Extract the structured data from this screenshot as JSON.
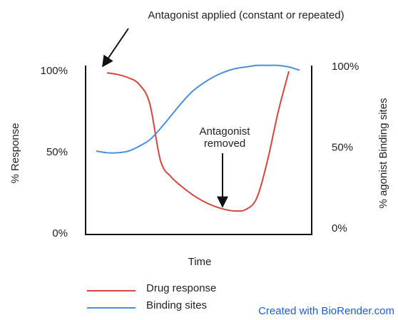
{
  "chart_data": {
    "type": "line",
    "annotations": [
      "Antagonist applied (constant or repeated)",
      "Antagonist",
      "removed"
    ],
    "xlabel": "Time",
    "ylabel": "% Response",
    "y2label": "% agonist Binding sites",
    "categories": [
      null,
      null,
      null,
      null,
      null,
      null,
      null,
      null,
      null,
      null,
      null,
      null,
      null,
      null,
      null,
      null,
      null,
      null,
      null,
      null
    ],
    "ylim": [
      0,
      100
    ],
    "yticks": [
      {
        "value": 0,
        "label": "0%"
      },
      {
        "value": 50,
        "label": "50%"
      },
      {
        "value": 100,
        "label": "100%"
      }
    ],
    "y2lim": [
      0,
      100
    ],
    "y2ticks": [
      {
        "value": 0,
        "label": "0%"
      },
      {
        "value": 50,
        "label": "50%"
      },
      {
        "value": 100,
        "label": "100%"
      }
    ],
    "series": [
      {
        "name": "Drug response",
        "color": "#d6453d",
        "values": [
          null,
          99,
          98,
          96,
          92,
          80,
          45,
          35,
          29,
          24,
          20,
          17,
          15,
          14,
          15,
          22,
          45,
          75,
          100,
          null
        ]
      },
      {
        "name": "Binding sites",
        "color": "#4a8fd8",
        "axis": "y2",
        "values": [
          48,
          47,
          47,
          48,
          51,
          55,
          62,
          70,
          78,
          85,
          90,
          94,
          97,
          99,
          100,
          101,
          101,
          101,
          100,
          98
        ]
      }
    ],
    "legend": "bottom-left",
    "credit": "Created with BioRender.com"
  }
}
